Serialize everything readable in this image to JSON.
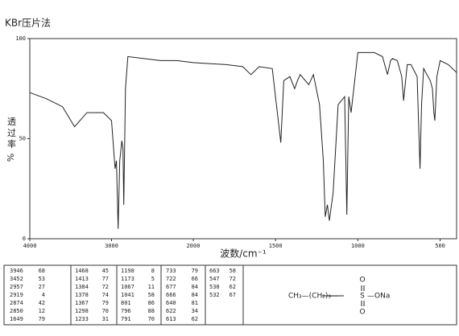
{
  "chart_data": {
    "type": "line",
    "title": "KBr压片法",
    "y_label_chars": [
      "透",
      "过",
      "率"
    ],
    "y_label_unit": "%",
    "x_label": "波数/cm⁻¹",
    "x": [
      4000,
      3800,
      3600,
      3452,
      3300,
      3100,
      3000,
      2957,
      2940,
      2919,
      2900,
      2874,
      2860,
      2850,
      2830,
      2800,
      2600,
      2400,
      2200,
      2000,
      1800,
      1700,
      1649,
      1600,
      1520,
      1468,
      1450,
      1413,
      1384,
      1367,
      1350,
      1298,
      1270,
      1233,
      1210,
      1198,
      1185,
      1173,
      1150,
      1120,
      1080,
      1067,
      1055,
      1041,
      1000,
      900,
      850,
      820,
      801,
      790,
      760,
      733,
      722,
      700,
      677,
      640,
      622,
      613,
      600,
      560,
      547,
      538,
      532,
      520,
      500,
      450,
      400
    ],
    "series": [
      {
        "color": "#222222",
        "values": [
          73,
          70,
          66,
          56,
          63,
          63,
          59,
          35,
          39,
          5,
          39,
          49,
          45,
          17,
          75,
          91,
          90,
          89,
          89,
          88,
          87,
          86,
          82,
          86,
          85,
          48,
          79,
          81,
          75,
          79,
          82,
          77,
          82,
          67,
          39,
          11,
          17,
          9,
          23,
          67,
          71,
          12,
          71,
          63,
          93,
          93,
          91,
          82,
          89,
          90,
          89,
          81,
          69,
          87,
          87,
          81,
          35,
          67,
          85,
          79,
          75,
          63,
          59,
          81,
          89,
          87,
          83
        ]
      }
    ],
    "xlim": [
      4000,
      400
    ],
    "xbreak": 2000,
    "xticks": [
      4000,
      3000,
      2000,
      1500,
      1000,
      500
    ],
    "ylim": [
      0,
      100
    ],
    "yticks": [
      0,
      50,
      100
    ]
  },
  "table": {
    "peaks": [
      [
        [
          3946,
          68
        ],
        [
          3452,
          53
        ],
        [
          2957,
          27
        ],
        [
          2919,
          4
        ],
        [
          2874,
          42
        ],
        [
          2850,
          12
        ],
        [
          1649,
          79
        ]
      ],
      [
        [
          1468,
          45
        ],
        [
          1413,
          77
        ],
        [
          1384,
          72
        ],
        [
          1378,
          74
        ],
        [
          1367,
          79
        ],
        [
          1298,
          70
        ],
        [
          1233,
          31
        ]
      ],
      [
        [
          1198,
          8
        ],
        [
          1173,
          5
        ],
        [
          1067,
          11
        ],
        [
          1041,
          58
        ],
        [
          801,
          86
        ],
        [
          796,
          88
        ],
        [
          791,
          70
        ]
      ],
      [
        [
          733,
          79
        ],
        [
          722,
          66
        ],
        [
          677,
          84
        ],
        [
          666,
          84
        ],
        [
          640,
          81
        ],
        [
          622,
          34
        ],
        [
          613,
          62
        ]
      ],
      [
        [
          663,
          58
        ],
        [
          547,
          72
        ],
        [
          538,
          62
        ],
        [
          532,
          67
        ]
      ]
    ],
    "formula": {
      "chain": "CH₃—(CH₂)₉—",
      "s": "S",
      "ona": "—ONa",
      "oxygens": [
        "O",
        "O"
      ]
    }
  }
}
